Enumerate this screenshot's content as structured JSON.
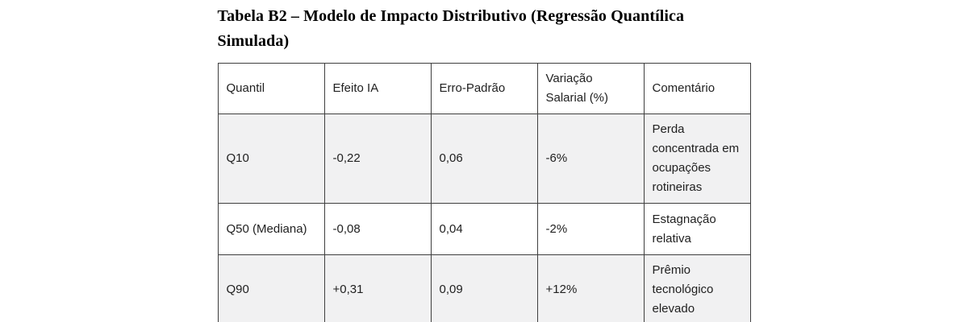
{
  "page": {
    "title": "Tabela B2 – Modelo de Impacto Distributivo (Regressão Quantílica Simulada)"
  },
  "table": {
    "headers": [
      "Quantil",
      "Efeito IA",
      "Erro-Padrão",
      "Variação Salarial (%)",
      "Comentário"
    ],
    "rows": [
      {
        "quantil": "Q10",
        "efeito_ia": "-0,22",
        "erro_padrao": "0,06",
        "variacao_salarial": "-6%",
        "comentario": "Perda concentrada em ocupações rotineiras"
      },
      {
        "quantil": "Q50 (Mediana)",
        "efeito_ia": "-0,08",
        "erro_padrao": "0,04",
        "variacao_salarial": "-2%",
        "comentario": "Estagnação relativa"
      },
      {
        "quantil": "Q90",
        "efeito_ia": "+0,31",
        "erro_padrao": "0,09",
        "variacao_salarial": "+12%",
        "comentario": "Prêmio tecnológico elevado"
      }
    ]
  },
  "colors": {
    "stripe_row_background": "#f1f1f2",
    "table_border": "#3f3f3f",
    "body_text": "#212121",
    "title_text": "#000000"
  }
}
